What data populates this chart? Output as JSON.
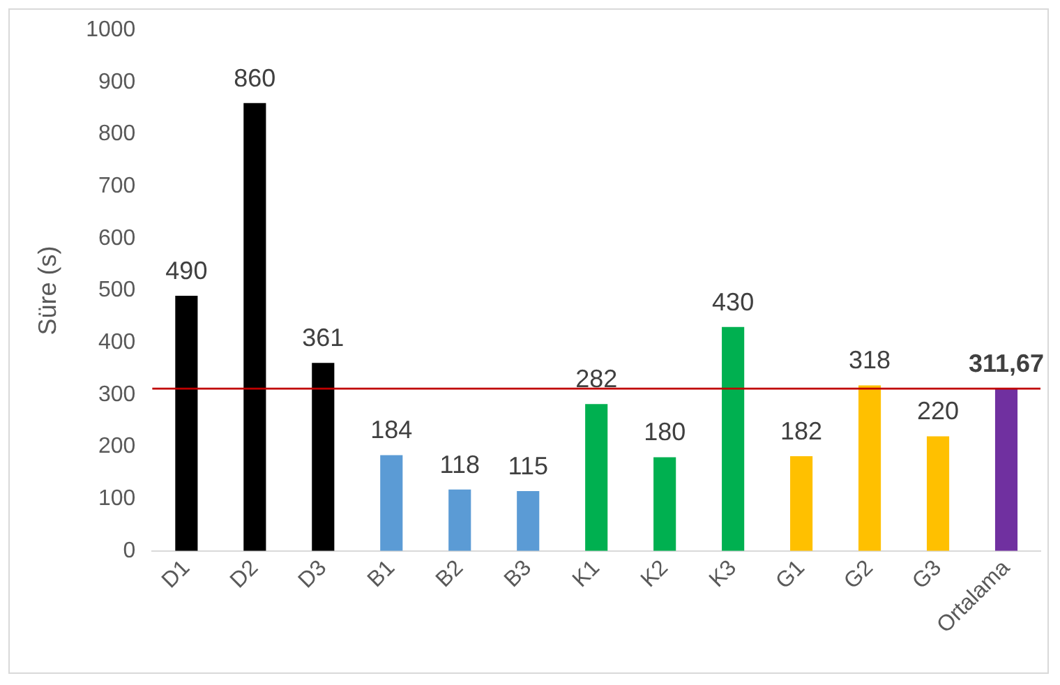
{
  "chart_data": {
    "type": "bar",
    "ylabel": "Süre (s)",
    "categories": [
      "D1",
      "D2",
      "D3",
      "B1",
      "B2",
      "B3",
      "K1",
      "K2",
      "K3",
      "G1",
      "G2",
      "G3",
      "Ortalama"
    ],
    "values": [
      490,
      860,
      361,
      184,
      118,
      115,
      282,
      180,
      430,
      182,
      318,
      220,
      311.67
    ],
    "colors": [
      "#000000",
      "#000000",
      "#000000",
      "#5b9bd5",
      "#5b9bd5",
      "#5b9bd5",
      "#00b050",
      "#00b050",
      "#00b050",
      "#ffc000",
      "#ffc000",
      "#ffc000",
      "#7030a0"
    ],
    "value_labels": [
      "490",
      "860",
      "361",
      "184",
      "118",
      "115",
      "282",
      "180",
      "430",
      "182",
      "318",
      "220",
      "311,67"
    ],
    "ylim": [
      0,
      1000
    ],
    "yticks": [
      0,
      100,
      200,
      300,
      400,
      500,
      600,
      700,
      800,
      900,
      1000
    ],
    "ref_lines": [
      {
        "axis": "y",
        "value": 311.67,
        "color": "#c00000"
      }
    ],
    "grid": false,
    "legend": false
  }
}
